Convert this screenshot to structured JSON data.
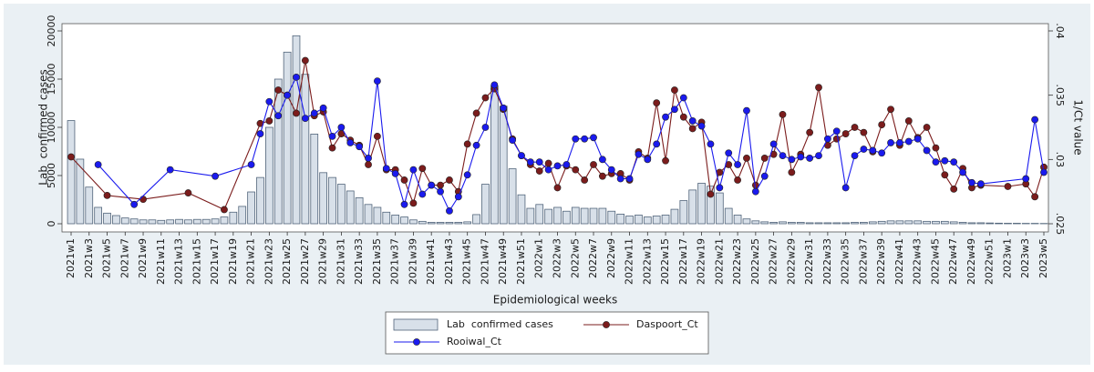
{
  "chart_data": {
    "type": "bar",
    "x_label": "Epidemiological weeks",
    "y_label": "Lab  confirmed cases",
    "y2_label": "1/Ct value",
    "connect_gaps": true,
    "legend": "bottom",
    "ylim": [
      0,
      20000
    ],
    "yticks": [
      0,
      5000,
      10000,
      15000,
      20000
    ],
    "y2lim": [
      0.025,
      0.04
    ],
    "y2ticks": [
      {
        "value": 0.025,
        "label": ".025"
      },
      {
        "value": 0.03,
        "label": ".03"
      },
      {
        "value": 0.035,
        "label": ".035"
      },
      {
        "value": 0.04,
        "label": ".04"
      }
    ],
    "categories": [
      "2021w1",
      null,
      "2021w3",
      null,
      "2021w5",
      null,
      "2021w7",
      null,
      "2021w9",
      null,
      "2021w11",
      null,
      "2021w13",
      null,
      "2021w15",
      null,
      "2021w17",
      null,
      "2021w19",
      null,
      "2021w21",
      null,
      "2021w23",
      null,
      "2021w25",
      null,
      "2021w27",
      null,
      "2021w29",
      null,
      "2021w31",
      null,
      "2021w33",
      null,
      "2021w35",
      null,
      "2021w37",
      null,
      "2021w39",
      null,
      "2021w41",
      null,
      "2021w43",
      null,
      "2021w45",
      null,
      "2021w47",
      null,
      "2021w49",
      null,
      "2021w51",
      null,
      "2022w1",
      null,
      "2022w3",
      null,
      "2022w5",
      null,
      "2022w7",
      null,
      "2022w9",
      null,
      "2022w11",
      null,
      "2022w13",
      null,
      "2022w15",
      null,
      "2022w17",
      null,
      "2022w19",
      null,
      "2022w21",
      null,
      "2022w23",
      null,
      "2022w25",
      null,
      "2022w27",
      null,
      "2022w29",
      null,
      "2022w31",
      null,
      "2022w33",
      null,
      "2022w35",
      null,
      "2022w37",
      null,
      "2022w39",
      null,
      "2022w41",
      null,
      "2022w43",
      null,
      "2022w45",
      null,
      "2022w47",
      null,
      "2022w49",
      null,
      "2022w51",
      null,
      "2023w1",
      null,
      "2023w3",
      null,
      "2023w5"
    ],
    "series": [
      {
        "name": "Lab  confirmed cases",
        "type": "bar",
        "color": "#d8e0e9",
        "edge": "#51647a",
        "values": [
          10700,
          6700,
          3800,
          1700,
          1100,
          850,
          600,
          500,
          400,
          400,
          350,
          400,
          450,
          400,
          450,
          450,
          500,
          700,
          1200,
          1800,
          3300,
          4800,
          10000,
          15000,
          17800,
          19500,
          15500,
          9300,
          5300,
          4800,
          4100,
          3400,
          2700,
          2000,
          1700,
          1200,
          900,
          700,
          400,
          250,
          150,
          150,
          150,
          150,
          200,
          950,
          4100,
          14300,
          12200,
          5700,
          3000,
          1600,
          2000,
          1500,
          1700,
          1300,
          1700,
          1600,
          1600,
          1600,
          1300,
          1000,
          800,
          900,
          700,
          800,
          900,
          1500,
          2400,
          3500,
          4200,
          3900,
          3200,
          1600,
          900,
          500,
          300,
          200,
          150,
          200,
          150,
          150,
          100,
          100,
          100,
          100,
          100,
          150,
          150,
          200,
          250,
          300,
          300,
          300,
          300,
          250,
          250,
          250,
          200,
          150,
          100,
          100,
          80,
          60,
          50,
          50,
          40,
          40,
          30
        ]
      },
      {
        "name": "Daspoort_Ct",
        "type": "line",
        "axis": "y2",
        "color": "#7b1c1c",
        "values": [
          0.0302,
          null,
          null,
          null,
          0.0272,
          null,
          null,
          null,
          0.0269,
          null,
          null,
          null,
          null,
          0.0274,
          null,
          null,
          null,
          0.0261,
          null,
          null,
          null,
          0.0328,
          0.033,
          0.0354,
          0.035,
          0.0336,
          0.0377,
          0.0334,
          0.0337,
          0.0309,
          0.032,
          0.0315,
          0.0311,
          0.0296,
          0.0318,
          0.0292,
          0.0292,
          0.0284,
          0.0266,
          0.0293,
          0.028,
          0.028,
          0.0284,
          0.0275,
          0.0312,
          0.0336,
          0.0348,
          0.0355,
          0.0339,
          0.0316,
          0.0303,
          0.0296,
          0.0291,
          0.0297,
          0.0278,
          0.0295,
          0.0292,
          0.0284,
          0.0296,
          0.0287,
          0.0289,
          0.0289,
          0.0284,
          0.0306,
          0.0301,
          0.0344,
          0.0299,
          0.0354,
          0.0333,
          0.0324,
          0.0329,
          0.0273,
          0.029,
          0.0296,
          0.0284,
          0.0301,
          0.028,
          0.0301,
          0.0304,
          0.0335,
          0.029,
          0.0304,
          0.0321,
          0.0356,
          0.0311,
          0.0316,
          0.032,
          0.0325,
          0.0321,
          0.0306,
          0.0327,
          0.0339,
          0.0311,
          0.033,
          0.0317,
          0.0325,
          0.0309,
          0.0288,
          0.0277,
          0.0293,
          0.0278,
          0.028,
          null,
          null,
          0.0279,
          null,
          0.0281,
          0.0271,
          0.0294
        ]
      },
      {
        "name": "Rooiwal_Ct",
        "type": "line",
        "axis": "y2",
        "color": "#1a1aee",
        "values": [
          null,
          null,
          null,
          0.0296,
          null,
          null,
          null,
          0.0265,
          null,
          null,
          null,
          0.0292,
          null,
          null,
          null,
          null,
          0.0287,
          null,
          null,
          null,
          0.0296,
          0.032,
          0.0345,
          0.0334,
          0.035,
          0.0364,
          0.0332,
          0.0336,
          0.034,
          0.0318,
          0.0325,
          0.0313,
          0.031,
          0.0301,
          0.0361,
          0.0293,
          0.0289,
          0.0265,
          0.0292,
          0.0273,
          0.028,
          0.0275,
          0.026,
          0.0271,
          0.0288,
          0.0311,
          0.0325,
          0.0358,
          0.034,
          0.0315,
          0.0303,
          0.0298,
          0.0298,
          0.0292,
          0.0295,
          0.0296,
          0.0316,
          0.0316,
          0.0317,
          0.03,
          0.0292,
          0.0285,
          0.0285,
          0.0304,
          0.03,
          0.0312,
          0.0333,
          0.0339,
          0.0348,
          0.033,
          0.0326,
          0.0312,
          0.0278,
          0.0305,
          0.0296,
          0.0338,
          0.0275,
          0.0287,
          0.0312,
          0.0303,
          0.03,
          0.0302,
          0.0301,
          0.0303,
          0.0316,
          0.0322,
          0.0278,
          0.0303,
          0.0308,
          0.0307,
          0.0305,
          0.0313,
          0.0313,
          0.0314,
          0.0316,
          0.0307,
          0.0298,
          0.0299,
          0.0298,
          0.029,
          0.0282,
          0.0281,
          null,
          null,
          null,
          null,
          0.0285,
          0.0331,
          0.029
        ]
      }
    ]
  }
}
